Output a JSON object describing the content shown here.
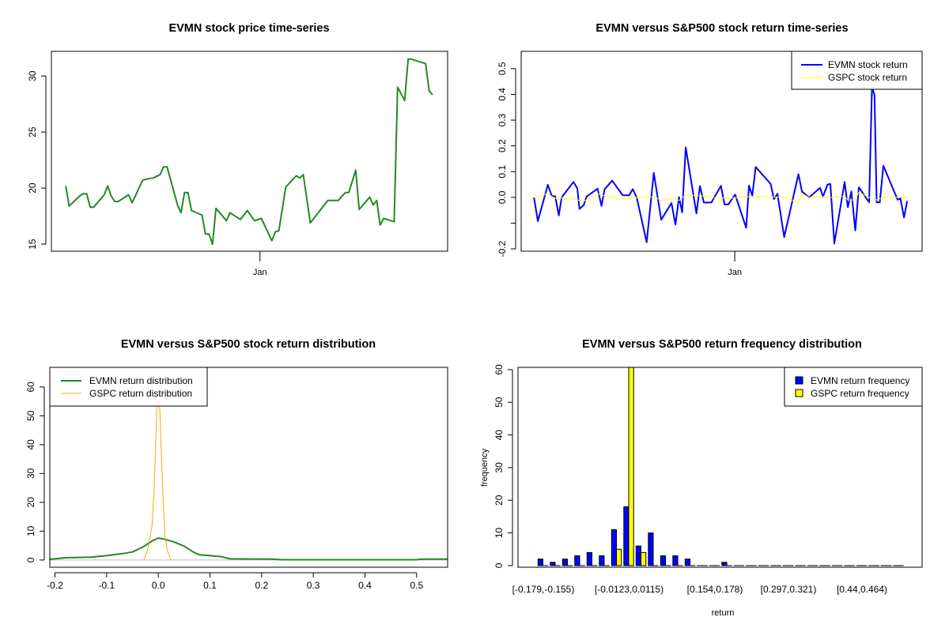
{
  "chart_data": [
    {
      "type": "line",
      "title": "EVMN stock price time-series",
      "xlabel": "",
      "ylabel": "",
      "xlim": [
        -4.1,
        109.3
      ],
      "ylim": [
        14.37,
        32.2
      ],
      "y_ticks": [
        15,
        20,
        25,
        30
      ],
      "y_tick_labels": [
        "15",
        "20",
        "25",
        "30"
      ],
      "x_ticks": [
        55.6
      ],
      "x_tick_labels": [
        "Jan"
      ],
      "series": [
        {
          "name": "EVMN price",
          "color": "#228B22",
          "x": [
            0,
            1,
            4,
            5,
            6,
            7,
            8,
            11,
            12,
            13,
            14,
            15,
            18,
            19,
            22,
            23,
            25,
            27,
            28,
            29,
            32,
            33,
            34,
            35,
            36,
            39,
            40,
            41,
            42,
            43,
            46,
            47,
            50,
            52,
            54,
            56,
            59,
            60,
            61,
            63,
            66,
            67,
            68,
            70,
            75,
            78,
            80,
            81,
            83,
            84,
            87,
            88,
            89,
            90,
            91,
            94,
            95,
            97,
            98,
            99,
            103,
            104,
            105
          ],
          "y": [
            20.2,
            18.4,
            19.3,
            19.5,
            19.5,
            18.3,
            18.3,
            19.4,
            20.2,
            19.3,
            18.8,
            18.8,
            19.4,
            18.7,
            20.7,
            20.8,
            20.9,
            21.2,
            21.9,
            21.9,
            18.5,
            17.8,
            19.6,
            19.6,
            18.0,
            17.6,
            15.9,
            15.9,
            15.0,
            18.2,
            17.1,
            17.8,
            17.2,
            18.0,
            17.1,
            17.3,
            15.3,
            16.1,
            16.2,
            20.1,
            21.1,
            20.9,
            21.2,
            16.9,
            18.9,
            18.9,
            19.6,
            19.6,
            21.6,
            18.1,
            19.2,
            18.5,
            18.9,
            16.7,
            17.3,
            17.0,
            29.0,
            27.8,
            31.5,
            31.5,
            31.1,
            28.7,
            28.3
          ]
        }
      ]
    },
    {
      "type": "line",
      "title": "EVMN versus S&P500 stock return time-series",
      "xlabel": "",
      "ylabel": "",
      "xlim": [
        -3.6,
        109.2
      ],
      "ylim": [
        -0.209,
        0.567
      ],
      "y_ticks": [
        -0.2,
        -0.1,
        0.0,
        0.1,
        0.2,
        0.3,
        0.4,
        0.5
      ],
      "y_tick_labels": [
        "-0.2",
        "",
        "0.0",
        "0.1",
        "0.2",
        "0.3",
        "0.4",
        "0.5"
      ],
      "x_ticks": [
        56.5
      ],
      "x_tick_labels": [
        "Jan"
      ],
      "legend": {
        "position": "top-right",
        "entries": [
          "EVMN stock return",
          "GSPC stock return"
        ]
      },
      "series": [
        {
          "name": "EVMN stock return",
          "color": "#0000FF",
          "x": [
            0,
            1.1,
            3.9,
            5,
            6,
            7,
            7.8,
            11.1,
            12.2,
            12.8,
            14,
            14.8,
            17.9,
            19,
            19.9,
            22,
            25,
            26.8,
            27.8,
            28.9,
            31.7,
            33.7,
            35.8,
            38.7,
            39.8,
            40.8,
            41.7,
            42.7,
            45.7,
            46.7,
            47.8,
            49.9,
            52.6,
            53.6,
            54.7,
            56.6,
            59.7,
            60.5,
            61.4,
            62.4,
            66.6,
            67.5,
            68.5,
            70.4,
            74.4,
            75.4,
            77.4,
            80.5,
            81.3,
            82.6,
            83.4,
            84.5,
            87.4,
            88.3,
            89.3,
            90.4,
            91.4,
            94.3,
            95.1,
            95.8,
            96.4,
            97.3,
            98.3,
            102.3,
            103.1,
            104.1,
            105
          ],
          "y": [
            0,
            -0.092,
            0.049,
            0.006,
            0.004,
            -0.07,
            0,
            0.06,
            0.035,
            -0.045,
            -0.03,
            0.003,
            0.034,
            -0.033,
            0.032,
            0.065,
            0.008,
            0.008,
            0.032,
            0,
            -0.174,
            0.095,
            -0.087,
            -0.022,
            -0.106,
            0.001,
            -0.058,
            0.194,
            -0.062,
            0.044,
            -0.02,
            -0.02,
            0.045,
            -0.027,
            -0.027,
            0.011,
            -0.118,
            0.046,
            0.007,
            0.118,
            0.052,
            -0.007,
            0.014,
            -0.154,
            0.09,
            0.023,
            0,
            0.037,
            0.003,
            0.05,
            0.052,
            -0.179,
            0.06,
            -0.038,
            0.023,
            -0.128,
            0.039,
            -0.019,
            0.428,
            0.397,
            -0.019,
            -0.019,
            0.123,
            -0.009,
            -0.004,
            -0.078,
            -0.014
          ]
        },
        {
          "name": "GSPC stock return",
          "color": "#FFFF00",
          "x": [
            0,
            1.1,
            3.9,
            5,
            7,
            7.8,
            12.2,
            14,
            17.9,
            19.9,
            22,
            25,
            28.9,
            31.7,
            33.7,
            35.8,
            39.8,
            40.8,
            42.7,
            47.8,
            49.9,
            54.7,
            59.7,
            61.4,
            64,
            66.6,
            70.4,
            74.4,
            75.4,
            77.4,
            80.5,
            83.4,
            87.4,
            88.3,
            90.4,
            91.4,
            94.3,
            96.4,
            98.3,
            102.3,
            103.1,
            104.1,
            105
          ],
          "y": [
            0,
            0.002,
            0.015,
            0.004,
            -0.01,
            0,
            -0.01,
            -0.015,
            0.015,
            0.005,
            0.005,
            -0.005,
            0,
            -0.003,
            0.005,
            -0.012,
            -0.003,
            -0.012,
            0.01,
            0.005,
            0,
            -0.005,
            0.005,
            -0.002,
            0.006,
            0.002,
            0,
            -0.02,
            0.015,
            0,
            0.005,
            0,
            0.005,
            -0.01,
            -0.01,
            0.02,
            0,
            -0.01,
            0,
            0,
            0.005,
            -0.003,
            0.007
          ]
        }
      ]
    },
    {
      "type": "line",
      "title": "EVMN versus S&P500 stock return distribution",
      "xlabel": "",
      "ylabel": "",
      "xlim": [
        -0.21,
        0.56
      ],
      "ylim": [
        -2.5,
        66.8
      ],
      "x_ticks": [
        -0.2,
        -0.1,
        0.0,
        0.1,
        0.2,
        0.3,
        0.4,
        0.5
      ],
      "x_tick_labels": [
        "-0.2",
        "-0.1",
        "0.0",
        "0.1",
        "0.2",
        "0.3",
        "0.4",
        "0.5"
      ],
      "y_ticks": [
        0,
        10,
        20,
        30,
        40,
        50,
        60
      ],
      "y_tick_labels": [
        "0",
        "10",
        "20",
        "30",
        "40",
        "50",
        "60"
      ],
      "legend": {
        "position": "top-left",
        "entries": [
          "EVMN return distribution",
          "GSPC return distribution"
        ]
      },
      "series": [
        {
          "name": "EVMN return distribution",
          "color": "#228B22",
          "x": [
            -0.21,
            -0.2,
            -0.18,
            -0.13,
            -0.1,
            -0.07,
            -0.05,
            -0.03,
            -0.01,
            0,
            0.01,
            0.03,
            0.05,
            0.07,
            0.08,
            0.1,
            0.12,
            0.14,
            0.22,
            0.24,
            0.5,
            0.51,
            0.56
          ],
          "y": [
            0.3,
            0.4,
            0.8,
            1.0,
            1.5,
            2.2,
            2.8,
            4.5,
            6.8,
            7.6,
            7.3,
            6.3,
            4.8,
            2.5,
            1.8,
            1.5,
            1.2,
            0.4,
            0.3,
            0.1,
            0.1,
            0.3,
            0.3
          ]
        },
        {
          "name": "GSPC return distribution",
          "color": "#FFA500",
          "x": [
            -0.028,
            -0.02,
            -0.012,
            -0.008,
            -0.005,
            -0.003,
            0,
            0.003,
            0.006,
            0.009,
            0.013,
            0.018,
            0.024
          ],
          "y": [
            0,
            4,
            12,
            25,
            40,
            52,
            62,
            52,
            36,
            22,
            8,
            3,
            0
          ]
        }
      ]
    },
    {
      "type": "bar",
      "title": "EVMN versus S&P500 return frequency distribution",
      "xlabel": "return",
      "ylabel": "frequency",
      "ylim": [
        -0.5,
        60.7
      ],
      "y_ticks": [
        0,
        10,
        20,
        30,
        40,
        50,
        60
      ],
      "y_tick_labels": [
        "0",
        "10",
        "20",
        "30",
        "40",
        "50",
        "60"
      ],
      "bin_count": 30,
      "category_labels_shown": [
        {
          "index": 0,
          "label": "[-0.179,-0.155)"
        },
        {
          "index": 7,
          "label": "[-0.0123,0.0115)"
        },
        {
          "index": 14,
          "label": "[0.154,0.178)"
        },
        {
          "index": 20,
          "label": "[0.297,0.321)"
        },
        {
          "index": 26,
          "label": "[0.44,0.464)"
        }
      ],
      "legend": {
        "position": "top-right",
        "entries": [
          "EVMN return frequency",
          "GSPC return frequency"
        ]
      },
      "series": [
        {
          "name": "EVMN return frequency",
          "color": "#0000FF",
          "values": [
            2,
            1,
            2,
            3,
            4,
            3,
            11,
            18,
            6,
            10,
            3,
            3,
            2,
            0,
            0,
            1,
            0,
            0,
            0,
            0,
            0,
            0,
            0,
            0,
            0,
            0,
            0,
            0,
            0,
            0
          ]
        },
        {
          "name": "GSPC return frequency",
          "color": "#FFFF00",
          "values": [
            0,
            0,
            0,
            0,
            0,
            0,
            5,
            61,
            4,
            0,
            0,
            0,
            0,
            0,
            0,
            0,
            0,
            0,
            0,
            0,
            0,
            0,
            0,
            0,
            0,
            0,
            0,
            0,
            0,
            0
          ]
        }
      ]
    }
  ]
}
